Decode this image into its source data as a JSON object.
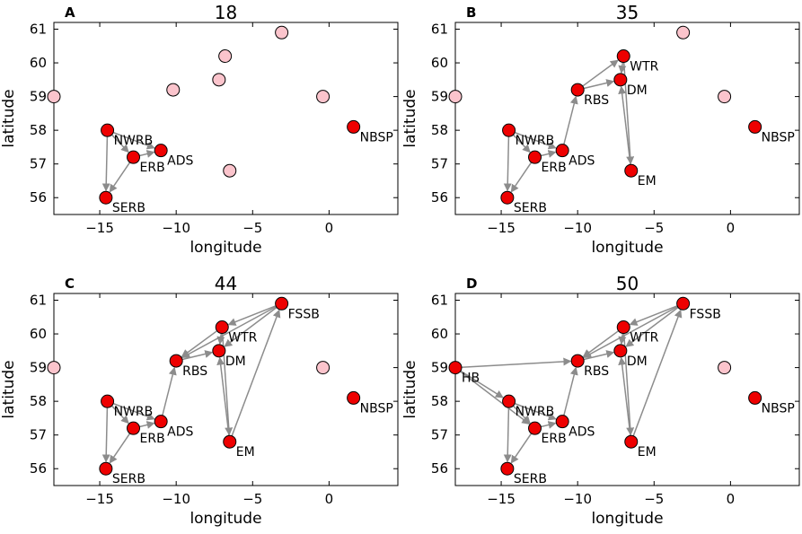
{
  "figure": {
    "colors": {
      "active": "#ee0000",
      "inactive": "#fbc4cc",
      "edge": "#8c8c8c",
      "outline": "#000000"
    }
  },
  "chart_data": [
    {
      "type": "scatter",
      "panel": "A",
      "title": "18",
      "xlabel": "longitude",
      "ylabel": "latitude",
      "xlim": [
        -18,
        4.5
      ],
      "ylim": [
        55.5,
        61.2
      ],
      "xticks": [
        -15,
        -10,
        -5,
        0
      ],
      "yticks": [
        56,
        57,
        58,
        59,
        60,
        61
      ],
      "nodes": [
        {
          "x": -14.5,
          "y": 58.0,
          "active": true,
          "label": "NWRB"
        },
        {
          "x": -12.8,
          "y": 57.2,
          "active": true,
          "label": "ERB"
        },
        {
          "x": -11.0,
          "y": 57.4,
          "active": true,
          "label": "ADS"
        },
        {
          "x": -14.6,
          "y": 56.0,
          "active": true,
          "label": "SERB"
        },
        {
          "x": 1.6,
          "y": 58.1,
          "active": true,
          "label": "NBSP"
        },
        {
          "x": -18.0,
          "y": 59.0,
          "active": false
        },
        {
          "x": -10.2,
          "y": 59.2,
          "active": false
        },
        {
          "x": -7.2,
          "y": 59.5,
          "active": false
        },
        {
          "x": -6.8,
          "y": 60.2,
          "active": false
        },
        {
          "x": -3.1,
          "y": 60.9,
          "active": false
        },
        {
          "x": -0.4,
          "y": 59.0,
          "active": false
        },
        {
          "x": -6.5,
          "y": 56.8,
          "active": false
        }
      ],
      "edges": [
        {
          "from": [
            -14.5,
            58.0
          ],
          "to": [
            -12.8,
            57.2
          ]
        },
        {
          "from": [
            -14.5,
            58.0
          ],
          "to": [
            -11.0,
            57.4
          ]
        },
        {
          "from": [
            -14.5,
            58.0
          ],
          "to": [
            -14.6,
            56.0
          ]
        },
        {
          "from": [
            -12.8,
            57.2
          ],
          "to": [
            -14.6,
            56.0
          ]
        },
        {
          "from": [
            -12.8,
            57.2
          ],
          "to": [
            -11.0,
            57.4
          ]
        }
      ]
    },
    {
      "type": "scatter",
      "panel": "B",
      "title": "35",
      "xlabel": "longitude",
      "ylabel": "latitude",
      "xlim": [
        -18,
        4.5
      ],
      "ylim": [
        55.5,
        61.2
      ],
      "xticks": [
        -15,
        -10,
        -5,
        0
      ],
      "yticks": [
        56,
        57,
        58,
        59,
        60,
        61
      ],
      "nodes": [
        {
          "x": -14.5,
          "y": 58.0,
          "active": true,
          "label": "NWRB"
        },
        {
          "x": -12.8,
          "y": 57.2,
          "active": true,
          "label": "ERB"
        },
        {
          "x": -11.0,
          "y": 57.4,
          "active": true,
          "label": "ADS"
        },
        {
          "x": -14.6,
          "y": 56.0,
          "active": true,
          "label": "SERB"
        },
        {
          "x": -10.0,
          "y": 59.2,
          "active": true,
          "label": "RBS"
        },
        {
          "x": -7.0,
          "y": 60.2,
          "active": true,
          "label": "WTR"
        },
        {
          "x": -7.2,
          "y": 59.5,
          "active": true,
          "label": "DM"
        },
        {
          "x": -6.5,
          "y": 56.8,
          "active": true,
          "label": "EM"
        },
        {
          "x": 1.6,
          "y": 58.1,
          "active": true,
          "label": "NBSP"
        },
        {
          "x": -18.0,
          "y": 59.0,
          "active": false
        },
        {
          "x": -3.1,
          "y": 60.9,
          "active": false
        },
        {
          "x": -0.4,
          "y": 59.0,
          "active": false
        }
      ],
      "edges": [
        {
          "from": [
            -14.5,
            58.0
          ],
          "to": [
            -12.8,
            57.2
          ]
        },
        {
          "from": [
            -14.5,
            58.0
          ],
          "to": [
            -11.0,
            57.4
          ]
        },
        {
          "from": [
            -14.5,
            58.0
          ],
          "to": [
            -14.6,
            56.0
          ]
        },
        {
          "from": [
            -12.8,
            57.2
          ],
          "to": [
            -14.6,
            56.0
          ]
        },
        {
          "from": [
            -12.8,
            57.2
          ],
          "to": [
            -11.0,
            57.4
          ]
        },
        {
          "from": [
            -11.0,
            57.4
          ],
          "to": [
            -10.0,
            59.2
          ]
        },
        {
          "from": [
            -10.0,
            59.2
          ],
          "to": [
            -7.0,
            60.2
          ]
        },
        {
          "from": [
            -10.0,
            59.2
          ],
          "to": [
            -7.2,
            59.5
          ]
        },
        {
          "from": [
            -7.0,
            60.2
          ],
          "to": [
            -7.2,
            59.5
          ]
        },
        {
          "from": [
            -7.0,
            60.2
          ],
          "to": [
            -6.5,
            56.8
          ]
        },
        {
          "from": [
            -6.5,
            56.8
          ],
          "to": [
            -7.2,
            59.5
          ]
        }
      ]
    },
    {
      "type": "scatter",
      "panel": "C",
      "title": "44",
      "xlabel": "longitude",
      "ylabel": "latitude",
      "xlim": [
        -18,
        4.5
      ],
      "ylim": [
        55.5,
        61.2
      ],
      "xticks": [
        -15,
        -10,
        -5,
        0
      ],
      "yticks": [
        56,
        57,
        58,
        59,
        60,
        61
      ],
      "nodes": [
        {
          "x": -14.5,
          "y": 58.0,
          "active": true,
          "label": "NWRB"
        },
        {
          "x": -12.8,
          "y": 57.2,
          "active": true,
          "label": "ERB"
        },
        {
          "x": -11.0,
          "y": 57.4,
          "active": true,
          "label": "ADS"
        },
        {
          "x": -14.6,
          "y": 56.0,
          "active": true,
          "label": "SERB"
        },
        {
          "x": -10.0,
          "y": 59.2,
          "active": true,
          "label": "RBS"
        },
        {
          "x": -7.0,
          "y": 60.2,
          "active": true,
          "label": "WTR"
        },
        {
          "x": -7.2,
          "y": 59.5,
          "active": true,
          "label": "DM"
        },
        {
          "x": -6.5,
          "y": 56.8,
          "active": true,
          "label": "EM"
        },
        {
          "x": -3.1,
          "y": 60.9,
          "active": true,
          "label": "FSSB"
        },
        {
          "x": 1.6,
          "y": 58.1,
          "active": true,
          "label": "NBSP"
        },
        {
          "x": -18.0,
          "y": 59.0,
          "active": false
        },
        {
          "x": -0.4,
          "y": 59.0,
          "active": false
        }
      ],
      "edges": [
        {
          "from": [
            -14.5,
            58.0
          ],
          "to": [
            -12.8,
            57.2
          ]
        },
        {
          "from": [
            -14.5,
            58.0
          ],
          "to": [
            -11.0,
            57.4
          ]
        },
        {
          "from": [
            -14.5,
            58.0
          ],
          "to": [
            -14.6,
            56.0
          ]
        },
        {
          "from": [
            -12.8,
            57.2
          ],
          "to": [
            -14.6,
            56.0
          ]
        },
        {
          "from": [
            -12.8,
            57.2
          ],
          "to": [
            -11.0,
            57.4
          ]
        },
        {
          "from": [
            -11.0,
            57.4
          ],
          "to": [
            -10.0,
            59.2
          ]
        },
        {
          "from": [
            -10.0,
            59.2
          ],
          "to": [
            -7.2,
            59.5
          ]
        },
        {
          "from": [
            -7.0,
            60.2
          ],
          "to": [
            -10.0,
            59.2
          ]
        },
        {
          "from": [
            -3.1,
            60.9
          ],
          "to": [
            -10.0,
            59.2
          ]
        },
        {
          "from": [
            -3.1,
            60.9
          ],
          "to": [
            -7.0,
            60.2
          ]
        },
        {
          "from": [
            -3.1,
            60.9
          ],
          "to": [
            -7.2,
            59.5
          ]
        },
        {
          "from": [
            -7.0,
            60.2
          ],
          "to": [
            -7.2,
            59.5
          ]
        },
        {
          "from": [
            -7.0,
            60.2
          ],
          "to": [
            -6.5,
            56.8
          ]
        },
        {
          "from": [
            -6.5,
            56.8
          ],
          "to": [
            -7.2,
            59.5
          ]
        },
        {
          "from": [
            -6.5,
            56.8
          ],
          "to": [
            -3.1,
            60.9
          ]
        }
      ]
    },
    {
      "type": "scatter",
      "panel": "D",
      "title": "50",
      "xlabel": "longitude",
      "ylabel": "latitude",
      "xlim": [
        -18,
        4.5
      ],
      "ylim": [
        55.5,
        61.2
      ],
      "xticks": [
        -15,
        -10,
        -5,
        0
      ],
      "yticks": [
        56,
        57,
        58,
        59,
        60,
        61
      ],
      "nodes": [
        {
          "x": -18.0,
          "y": 59.0,
          "active": true,
          "label": "HB"
        },
        {
          "x": -14.5,
          "y": 58.0,
          "active": true,
          "label": "NWRB"
        },
        {
          "x": -12.8,
          "y": 57.2,
          "active": true,
          "label": "ERB"
        },
        {
          "x": -11.0,
          "y": 57.4,
          "active": true,
          "label": "ADS"
        },
        {
          "x": -14.6,
          "y": 56.0,
          "active": true,
          "label": "SERB"
        },
        {
          "x": -10.0,
          "y": 59.2,
          "active": true,
          "label": "RBS"
        },
        {
          "x": -7.0,
          "y": 60.2,
          "active": true,
          "label": "WTR"
        },
        {
          "x": -7.2,
          "y": 59.5,
          "active": true,
          "label": "DM"
        },
        {
          "x": -6.5,
          "y": 56.8,
          "active": true,
          "label": "EM"
        },
        {
          "x": -3.1,
          "y": 60.9,
          "active": true,
          "label": "FSSB"
        },
        {
          "x": 1.6,
          "y": 58.1,
          "active": true,
          "label": "NBSP"
        },
        {
          "x": -0.4,
          "y": 59.0,
          "active": false
        }
      ],
      "edges": [
        {
          "from": [
            -18.0,
            59.0
          ],
          "to": [
            -14.5,
            58.0
          ]
        },
        {
          "from": [
            -18.0,
            59.0
          ],
          "to": [
            -12.8,
            57.2
          ]
        },
        {
          "from": [
            -18.0,
            59.0
          ],
          "to": [
            -10.0,
            59.2
          ]
        },
        {
          "from": [
            -14.5,
            58.0
          ],
          "to": [
            -12.8,
            57.2
          ]
        },
        {
          "from": [
            -14.5,
            58.0
          ],
          "to": [
            -11.0,
            57.4
          ]
        },
        {
          "from": [
            -14.5,
            58.0
          ],
          "to": [
            -14.6,
            56.0
          ]
        },
        {
          "from": [
            -12.8,
            57.2
          ],
          "to": [
            -14.6,
            56.0
          ]
        },
        {
          "from": [
            -12.8,
            57.2
          ],
          "to": [
            -11.0,
            57.4
          ]
        },
        {
          "from": [
            -11.0,
            57.4
          ],
          "to": [
            -10.0,
            59.2
          ]
        },
        {
          "from": [
            -10.0,
            59.2
          ],
          "to": [
            -7.2,
            59.5
          ]
        },
        {
          "from": [
            -7.0,
            60.2
          ],
          "to": [
            -10.0,
            59.2
          ]
        },
        {
          "from": [
            -3.1,
            60.9
          ],
          "to": [
            -10.0,
            59.2
          ]
        },
        {
          "from": [
            -3.1,
            60.9
          ],
          "to": [
            -7.0,
            60.2
          ]
        },
        {
          "from": [
            -3.1,
            60.9
          ],
          "to": [
            -7.2,
            59.5
          ]
        },
        {
          "from": [
            -7.0,
            60.2
          ],
          "to": [
            -7.2,
            59.5
          ]
        },
        {
          "from": [
            -7.0,
            60.2
          ],
          "to": [
            -6.5,
            56.8
          ]
        },
        {
          "from": [
            -6.5,
            56.8
          ],
          "to": [
            -7.2,
            59.5
          ]
        },
        {
          "from": [
            -6.5,
            56.8
          ],
          "to": [
            -3.1,
            60.9
          ]
        }
      ]
    }
  ]
}
